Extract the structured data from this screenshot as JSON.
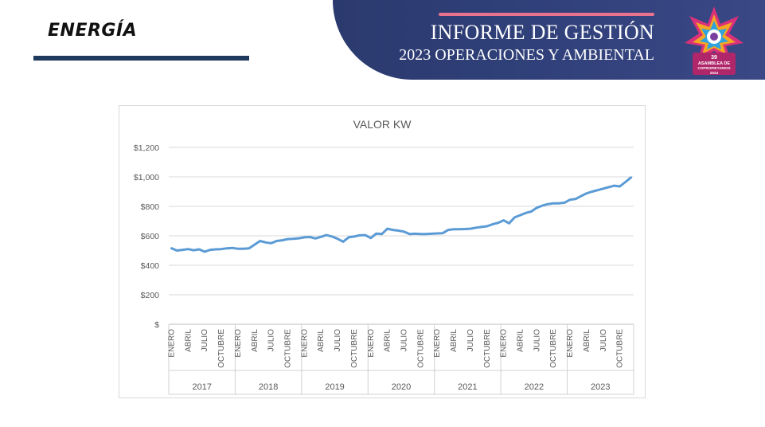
{
  "header": {
    "section_title": "ENERGÍA",
    "report_title": "INFORME DE GESTIÓN",
    "report_subtitle": "2023 OPERACIONES Y AMBIENTAL",
    "logo_text": {
      "number": "39",
      "line1": "ASAMBLEA DE",
      "line2": "COPROPIETARIOS",
      "year": "2024"
    },
    "colors": {
      "banner": "#2f3f78",
      "accent_line": "#e9728f",
      "underline": "#1f3a5c"
    }
  },
  "chart_data": {
    "type": "line",
    "title": "VALOR KW",
    "ylim": [
      0,
      1200
    ],
    "y_ticks": [
      {
        "value": 0,
        "label": "$"
      },
      {
        "value": 200,
        "label": "$200"
      },
      {
        "value": 400,
        "label": "$400"
      },
      {
        "value": 600,
        "label": "$600"
      },
      {
        "value": 800,
        "label": "$800"
      },
      {
        "value": 1000,
        "label": "$1,000"
      },
      {
        "value": 1200,
        "label": "$1,200"
      }
    ],
    "years": [
      "2017",
      "2018",
      "2019",
      "2020",
      "2021",
      "2022",
      "2023"
    ],
    "month_tick_labels": [
      "ENERO",
      "ABRIL",
      "JULIO",
      "OCTUBRE"
    ],
    "months_per_year": 12,
    "grid": true,
    "line_color": "#5b9bd5",
    "series": [
      {
        "values": [
          515,
          500,
          505,
          510,
          502,
          508,
          492,
          505,
          508,
          510,
          515,
          518,
          512,
          512,
          515,
          540,
          565,
          555,
          550,
          565,
          570,
          578,
          580,
          583,
          590,
          592,
          582,
          593,
          605,
          595,
          580,
          560,
          590,
          595,
          603,
          605,
          585,
          615,
          612,
          648,
          640,
          635,
          628,
          612,
          614,
          612,
          612,
          614,
          616,
          618,
          640,
          645,
          645,
          646,
          648,
          655,
          660,
          665,
          678,
          688,
          705,
          685,
          725,
          740,
          755,
          765,
          790,
          805,
          815,
          820,
          820,
          825,
          845,
          850,
          870,
          888,
          900,
          910,
          920,
          930,
          940,
          935,
          965,
          995
        ]
      }
    ]
  }
}
